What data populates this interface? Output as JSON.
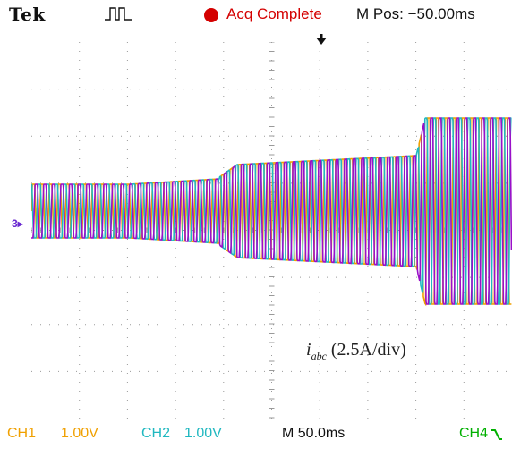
{
  "header": {
    "brand": "Tek",
    "trigger_mode_icon": "pulse-trigger-icon",
    "status_text": "Acq Complete",
    "status_color": "#d40000",
    "mpos": "M Pos: −50.00ms"
  },
  "screen": {
    "ref_marker": "3",
    "annotation_main": "i",
    "annotation_sub": "abc",
    "annotation_scale": " (2.5A/div)"
  },
  "footer": {
    "ch1_label": "CH1",
    "ch1_scale": "1.00V",
    "ch2_label": "CH2",
    "ch2_scale": "1.00V",
    "timebase": "M 50.0ms",
    "ch4_label": "CH4",
    "ch4_icon": "falling-edge-icon"
  },
  "colors": {
    "phase_a": "#f0a000",
    "phase_b": "#9a10c8",
    "phase_c": "#20b8c0",
    "grid": "#9a9a9a"
  }
}
